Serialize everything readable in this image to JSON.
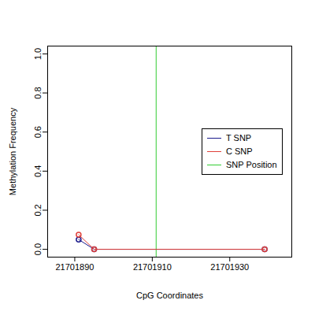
{
  "chart_data": {
    "type": "line",
    "x_label": "CpG Coordinates",
    "y_label": "Methylation Frequency",
    "xlim": [
      21701883,
      21701946
    ],
    "xticks": [
      21701890,
      21701910,
      21701930
    ],
    "ylim": [
      -0.04,
      1.04
    ],
    "yticks": [
      {
        "value": 0,
        "label": "0.0"
      },
      {
        "value": 0.2,
        "label": "0.2"
      },
      {
        "value": 0.4,
        "label": "0.4"
      },
      {
        "value": 0.6,
        "label": "0.6"
      },
      {
        "value": 0.8,
        "label": "0.8"
      },
      {
        "value": 1,
        "label": "1.0"
      }
    ],
    "x": [
      21701891,
      21701895,
      21701939
    ],
    "series": [
      {
        "name": "T SNP",
        "color": "#1a1a8c",
        "values": [
          0.05,
          0,
          0
        ],
        "marker": "circle"
      },
      {
        "name": "C SNP",
        "color": "#e0403a",
        "values": [
          0.075,
          0,
          0
        ],
        "marker": "circle"
      }
    ],
    "vline": {
      "name": "SNP Position",
      "x": 21701911,
      "color": "#33cc33"
    },
    "legend": "right",
    "grid": false
  }
}
